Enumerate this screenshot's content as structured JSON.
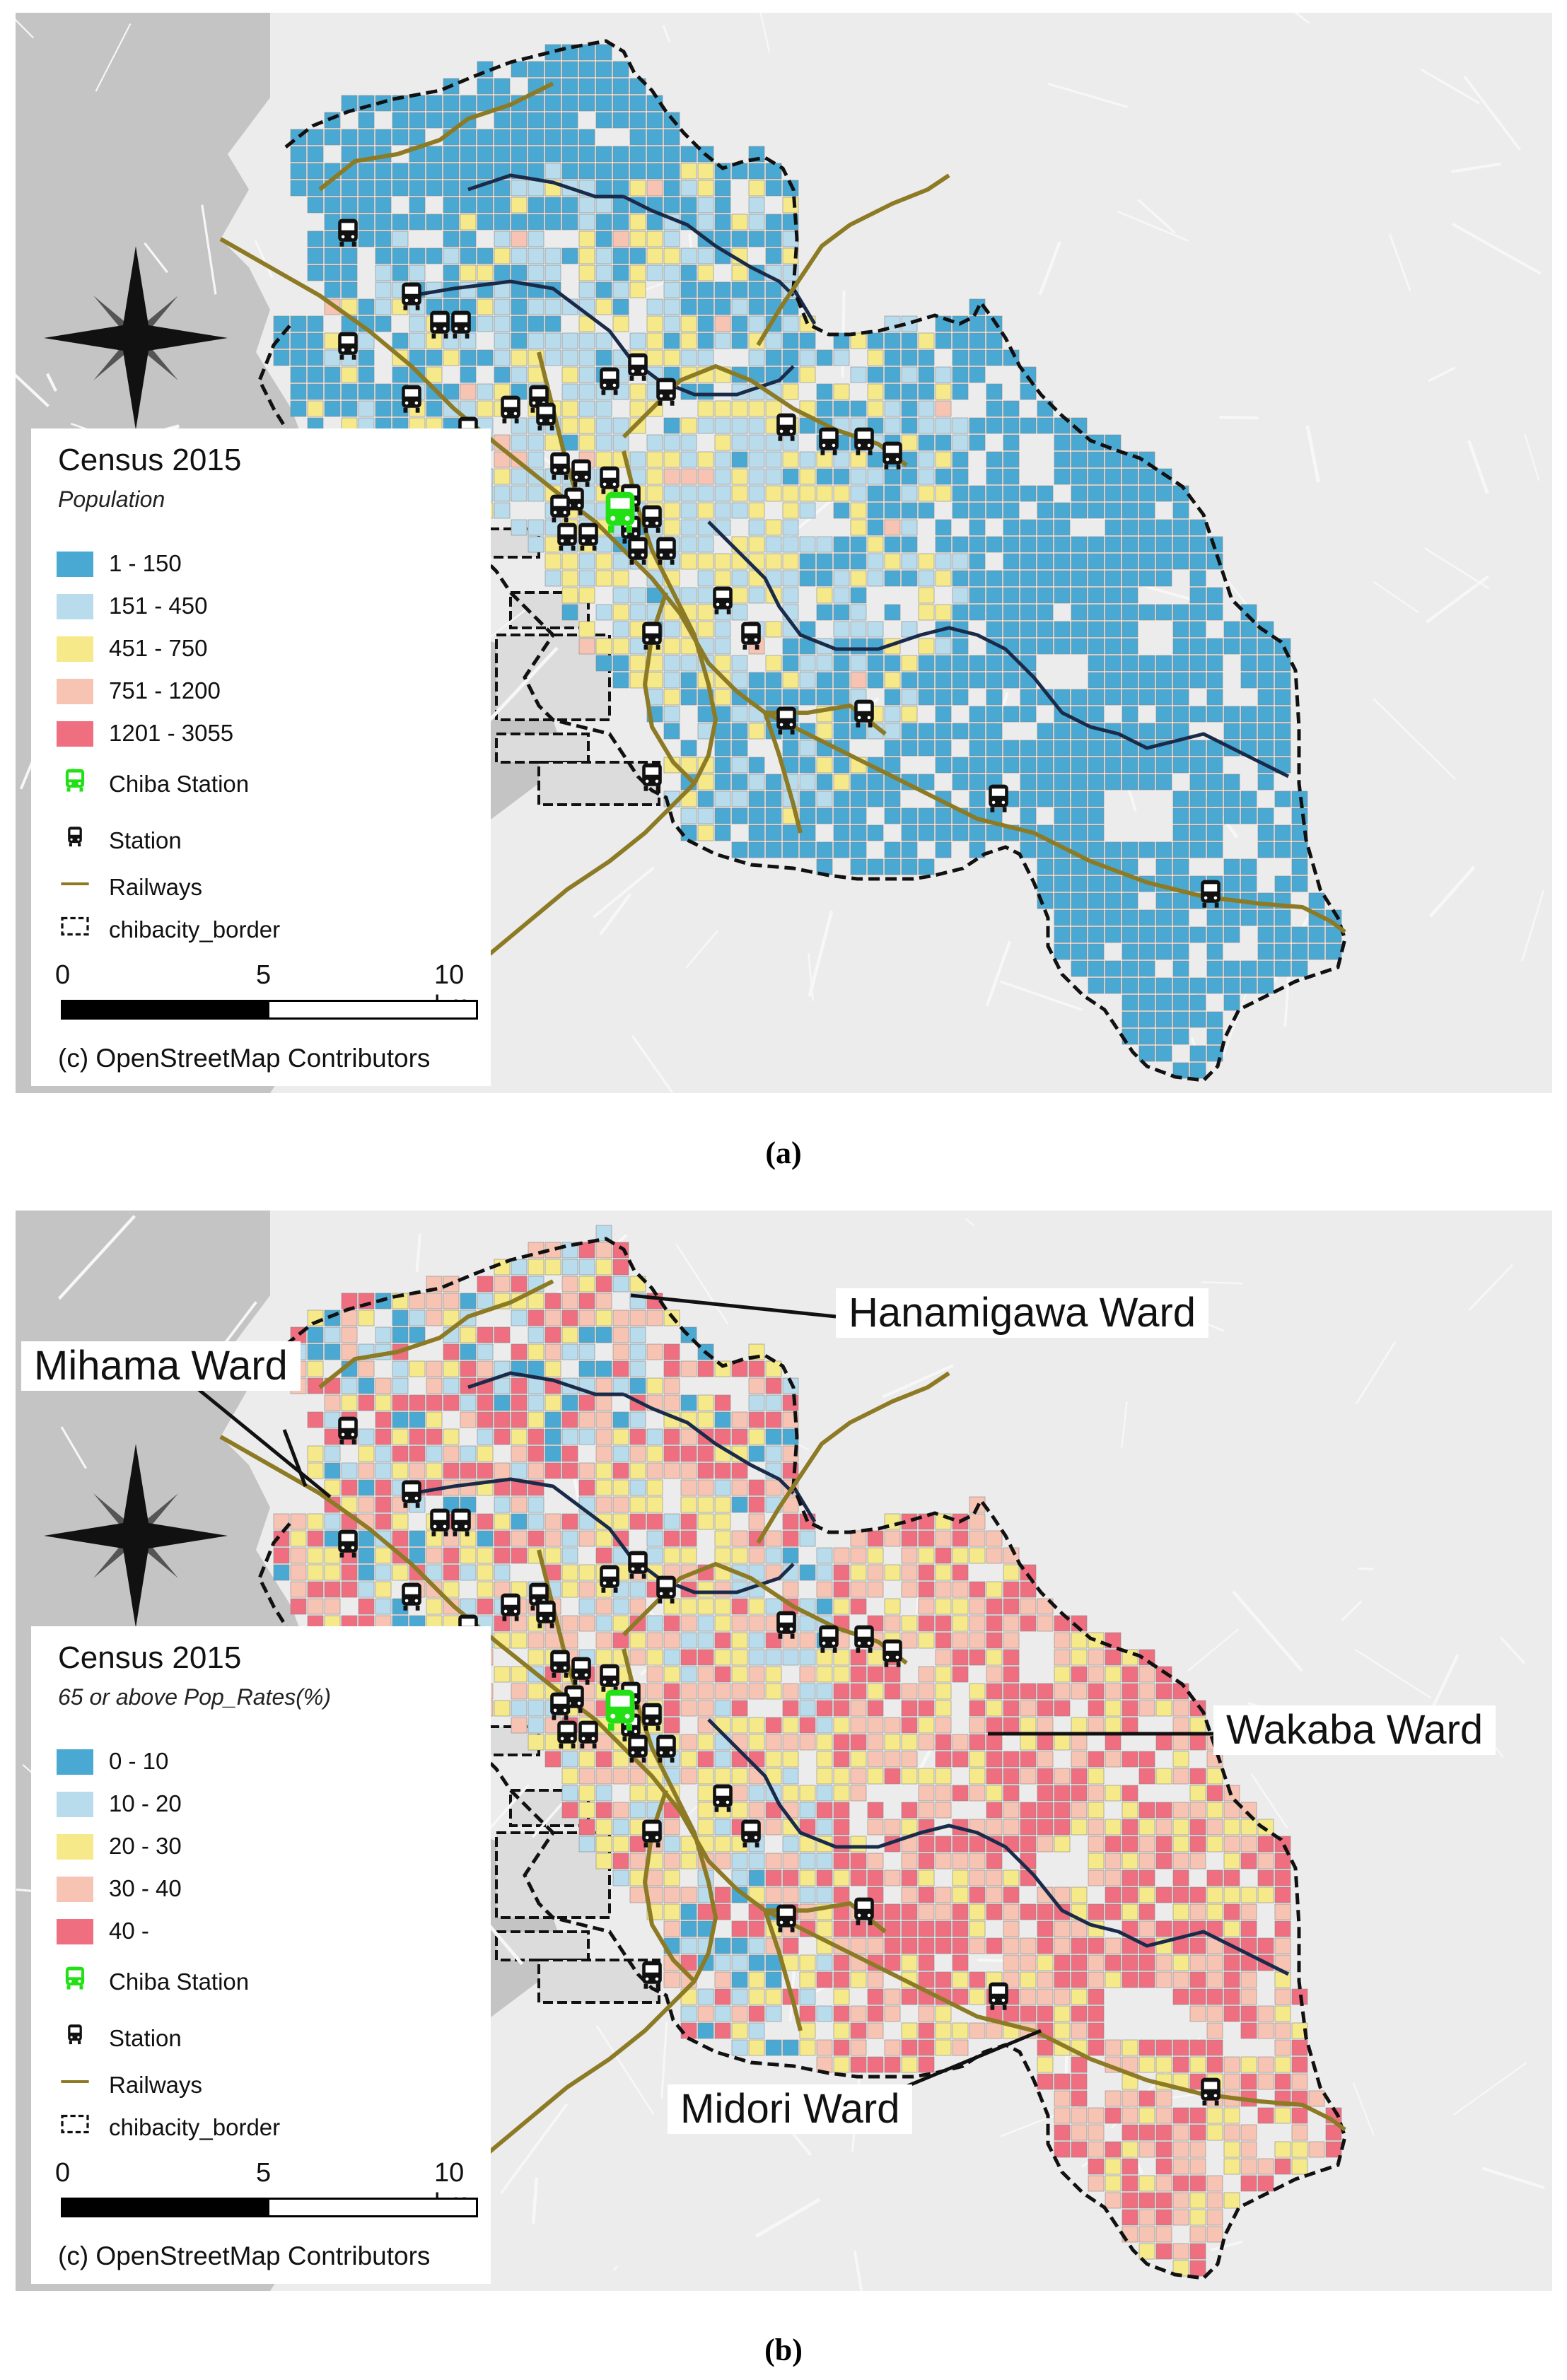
{
  "panels": [
    {
      "id": "a",
      "caption": "(a)",
      "legend": {
        "title": "Census 2015",
        "subtitle": "Population",
        "classes": [
          {
            "label": "1 - 150",
            "color": "#4aa9d3"
          },
          {
            "label": "151 - 450",
            "color": "#b9dced"
          },
          {
            "label": "451 - 750",
            "color": "#f5e98a"
          },
          {
            "label": "751 - 1200",
            "color": "#f7c4b3"
          },
          {
            "label": "1201 - 3055",
            "color": "#ef6f80"
          }
        ],
        "chiba_station": "Chiba Station",
        "station": "Station",
        "railways": "Railways",
        "border": "chibacity_border"
      },
      "class_mix": [
        0.58,
        0.17,
        0.14,
        0.07,
        0.04
      ],
      "scale": {
        "zero": "0",
        "mid": "5",
        "end": "10 km"
      },
      "attribution": "(c) OpenStreetMap Contributors",
      "ward_labels": []
    },
    {
      "id": "b",
      "caption": "(b)",
      "legend": {
        "title": "Census 2015",
        "subtitle": "65 or above Pop_Rates(%)",
        "classes": [
          {
            "label": "0 - 10",
            "color": "#4aa9d3"
          },
          {
            "label": "10 - 20",
            "color": "#b9dced"
          },
          {
            "label": "20 - 30",
            "color": "#f5e98a"
          },
          {
            "label": "30 - 40",
            "color": "#f7c4b3"
          },
          {
            "label": "40 -",
            "color": "#ef6f80"
          }
        ],
        "chiba_station": "Chiba Station",
        "station": "Station",
        "railways": "Railways",
        "border": "chibacity_border"
      },
      "class_mix": [
        0.14,
        0.16,
        0.24,
        0.2,
        0.26
      ],
      "scale": {
        "zero": "0",
        "mid": "5",
        "end": "10 km"
      },
      "attribution": "(c) OpenStreetMap Contributors",
      "ward_labels": [
        "Hanamigawa Ward",
        "Mihama Ward",
        "Wakaba Ward",
        "Midori Ward"
      ]
    }
  ],
  "colors": {
    "sea": "#c4c4c4",
    "land": "#ececec",
    "railway": "#8d7a25",
    "station_icon": "#111111",
    "chiba_station_icon": "#22e015",
    "border": "#111111"
  }
}
